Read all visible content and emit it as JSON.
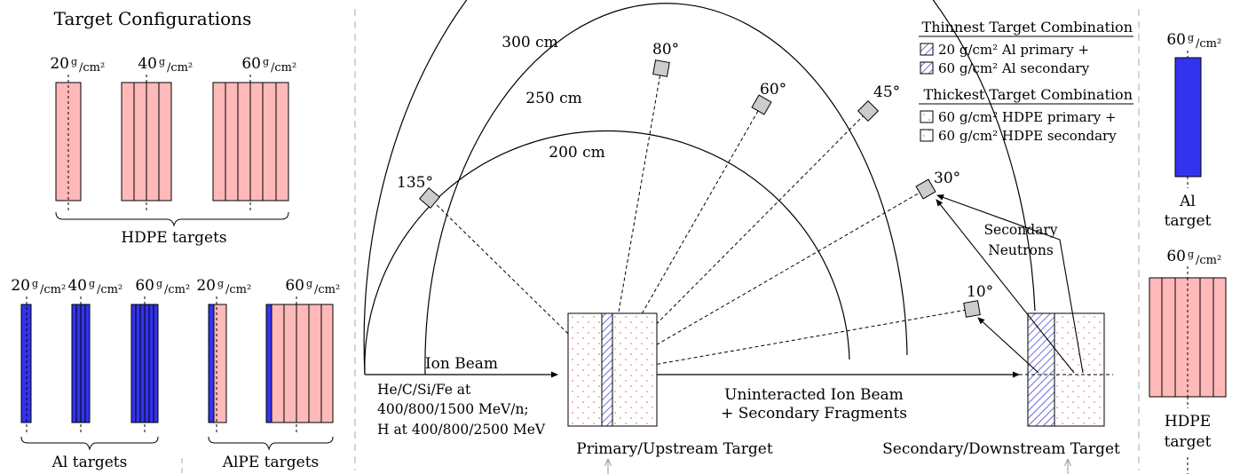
{
  "left_panel": {
    "title": "Target Configurations",
    "hdpe_labels": [
      "20",
      "40",
      "60"
    ],
    "unit": "g/cm²",
    "unit_num": "g",
    "unit_den": "/cm²",
    "hdpe_brace": "HDPE targets",
    "al_labels": [
      "20",
      "40",
      "60"
    ],
    "al_brace": "Al targets",
    "alpe_labels": [
      "20",
      "60"
    ],
    "alpe_brace": "AlPE targets"
  },
  "main": {
    "arcs": [
      "300 cm",
      "250 cm",
      "200 cm"
    ],
    "angles": [
      "135°",
      "80°",
      "60°",
      "45°",
      "30°",
      "10°"
    ],
    "beam_label": "Ion Beam",
    "beam_desc": [
      "He/C/Si/Fe at",
      "400/800/1500 MeV/n;",
      "H at 400/800/2500 MeV"
    ],
    "uninteracted": [
      "Uninteracted Ion Beam",
      "+ Secondary Fragments"
    ],
    "secondary_neutrons": [
      "Secondary",
      "Neutrons"
    ],
    "primary_target": "Primary/Upstream Target",
    "secondary_target": "Secondary/Downstream Target"
  },
  "legend": {
    "thin_title": "Thinnest Target Combination",
    "thin_items": [
      "20 g/cm² Al primary +",
      "60 g/cm² Al secondary"
    ],
    "thick_title": "Thickest Target Combination",
    "thick_items": [
      "60 g/cm² HDPE primary +",
      "60 g/cm² HDPE secondary"
    ]
  },
  "right_panel": {
    "al_value": "60",
    "al_label": [
      "Al",
      "target"
    ],
    "hdpe_value": "60",
    "hdpe_label": [
      "HDPE",
      "target"
    ]
  },
  "colors": {
    "hdpe": "#ffb9b9",
    "al": "#3333ee",
    "detector": "#cccccc",
    "divider": "#aaaaaa"
  }
}
